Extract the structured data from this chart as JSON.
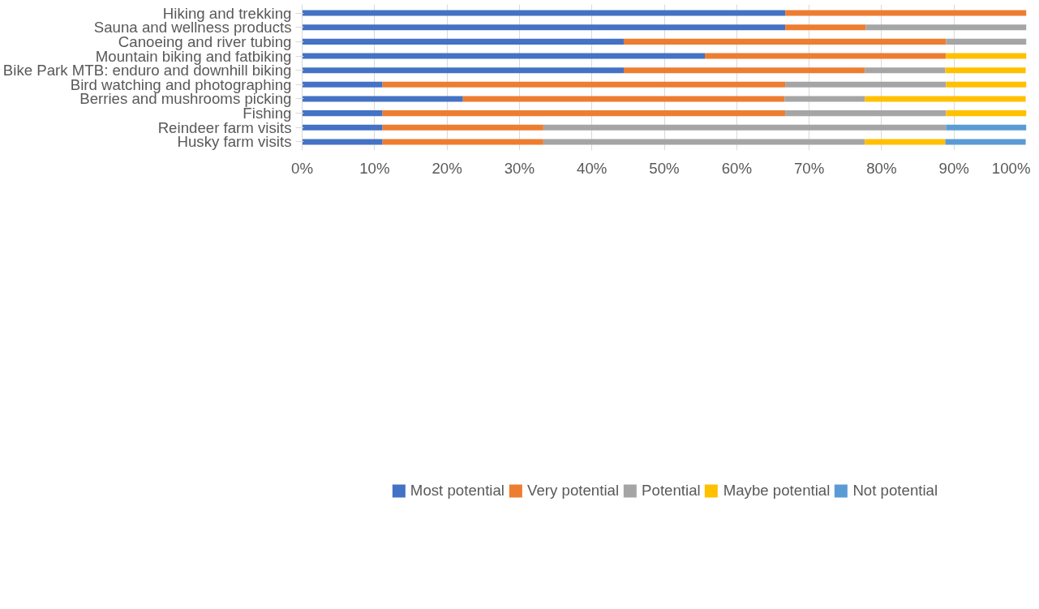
{
  "chart_data": {
    "type": "bar",
    "orientation": "horizontal",
    "stacked": true,
    "categories": [
      "Hiking and trekking",
      "Sauna and wellness products",
      "Canoeing and river tubing",
      "Mountain biking and fatbiking",
      "Bike Park MTB: enduro and downhill biking",
      "Bird watching and photographing",
      "Berries and mushrooms picking",
      "Fishing",
      "Reindeer farm visits",
      "Husky farm visits"
    ],
    "series": [
      {
        "name": "Most potential",
        "color": "#4472c4",
        "values": [
          66.7,
          66.7,
          44.4,
          55.6,
          44.4,
          11.1,
          22.2,
          11.1,
          11.1,
          11.1
        ]
      },
      {
        "name": "Very potential",
        "color": "#ed7d31",
        "values": [
          33.3,
          11.1,
          44.5,
          33.3,
          33.3,
          55.6,
          44.4,
          55.6,
          22.2,
          22.2
        ]
      },
      {
        "name": "Potential",
        "color": "#a5a5a5",
        "values": [
          null,
          22.2,
          11.1,
          null,
          11.1,
          22.2,
          11.1,
          22.2,
          55.6,
          44.4
        ]
      },
      {
        "name": "Maybe potential",
        "color": "#ffc000",
        "values": [
          null,
          null,
          null,
          11.1,
          11.1,
          11.1,
          22.2,
          11.1,
          null,
          11.1
        ]
      },
      {
        "name": "Not potential",
        "color": "#5b9bd5",
        "values": [
          null,
          null,
          null,
          null,
          null,
          null,
          null,
          null,
          11.1,
          11.1
        ]
      }
    ],
    "xlim": [
      0,
      100
    ],
    "xticks": [
      {
        "value": 0,
        "label": "0%"
      },
      {
        "value": 10,
        "label": "10%"
      },
      {
        "value": 20,
        "label": "20%"
      },
      {
        "value": 30,
        "label": "30%"
      },
      {
        "value": 40,
        "label": "40%"
      },
      {
        "value": 50,
        "label": "50%"
      },
      {
        "value": 60,
        "label": "60%"
      },
      {
        "value": 70,
        "label": "70%"
      },
      {
        "value": 80,
        "label": "80%"
      },
      {
        "value": 90,
        "label": "90%"
      },
      {
        "value": 100,
        "label": "100%"
      }
    ],
    "grid": "x",
    "legend": "bottom"
  }
}
